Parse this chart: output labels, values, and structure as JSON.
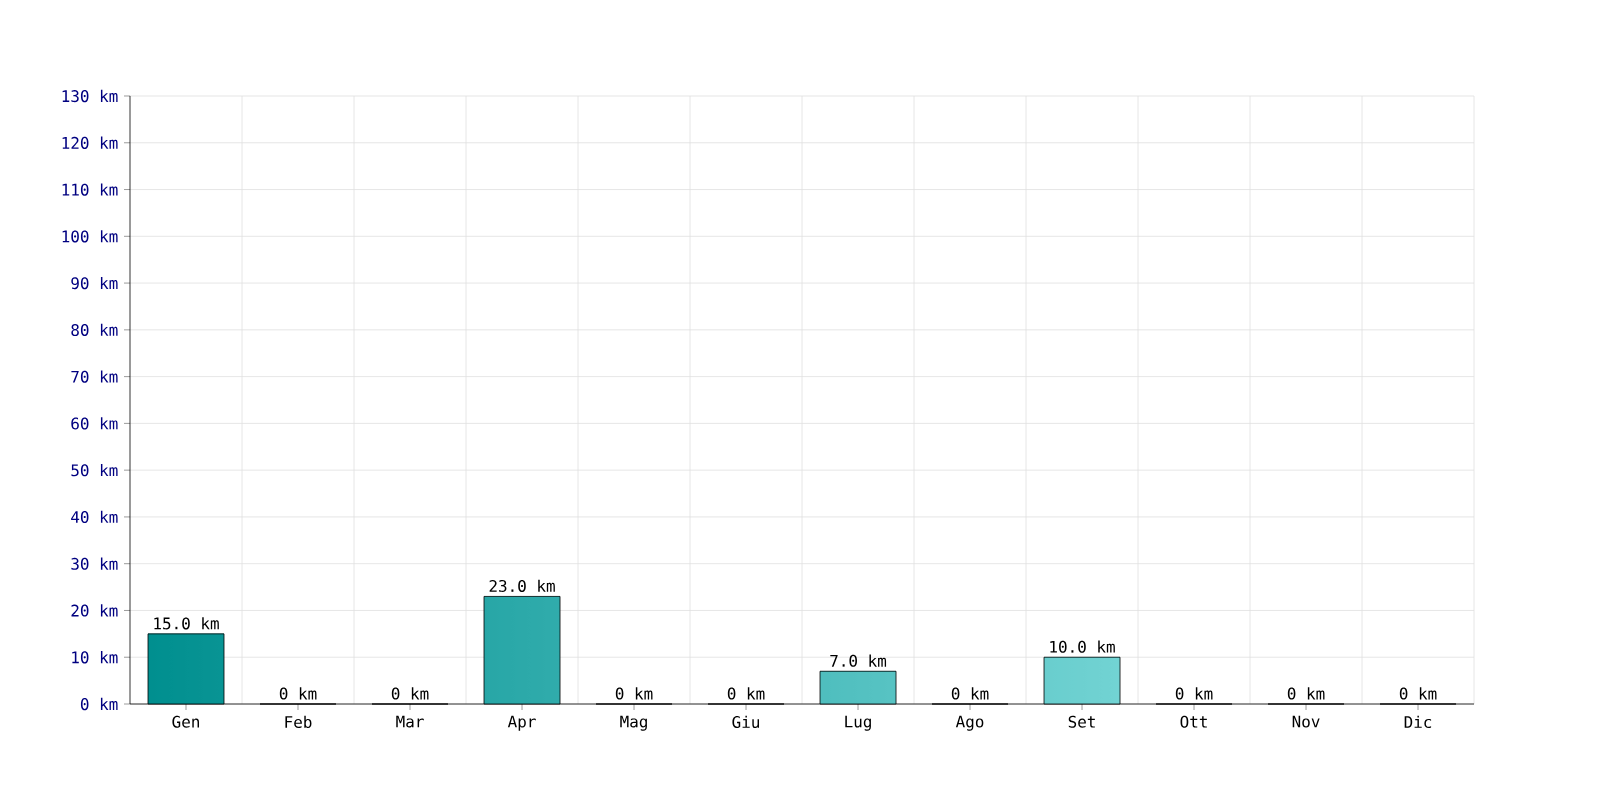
{
  "chart_data": {
    "type": "bar",
    "categories": [
      "Gen",
      "Feb",
      "Mar",
      "Apr",
      "Mag",
      "Giu",
      "Lug",
      "Ago",
      "Set",
      "Ott",
      "Nov",
      "Dic"
    ],
    "values": [
      15.0,
      0,
      0,
      23.0,
      0,
      0,
      7.0,
      0,
      10.0,
      0,
      0,
      0
    ],
    "value_labels": [
      "15.0 km",
      "0 km",
      "0 km",
      "23.0 km",
      "0 km",
      "0 km",
      "7.0 km",
      "0 km",
      "10.0 km",
      "0 km",
      "0 km",
      "0 km"
    ],
    "color": "#00cccc",
    "ylim": [
      0,
      130
    ],
    "yticks": [
      {
        "value": 0,
        "label": "0 km"
      },
      {
        "value": 10,
        "label": "10 km"
      },
      {
        "value": 20,
        "label": "20 km"
      },
      {
        "value": 30,
        "label": "30 km"
      },
      {
        "value": 40,
        "label": "40 km"
      },
      {
        "value": 50,
        "label": "50 km"
      },
      {
        "value": 60,
        "label": "60 km"
      },
      {
        "value": 70,
        "label": "70 km"
      },
      {
        "value": 80,
        "label": "80 km"
      },
      {
        "value": 90,
        "label": "90 km"
      },
      {
        "value": 100,
        "label": "100 km"
      },
      {
        "value": 110,
        "label": "110 km"
      },
      {
        "value": 120,
        "label": "120 km"
      },
      {
        "value": 130,
        "label": "130 km"
      }
    ],
    "grid": true
  }
}
